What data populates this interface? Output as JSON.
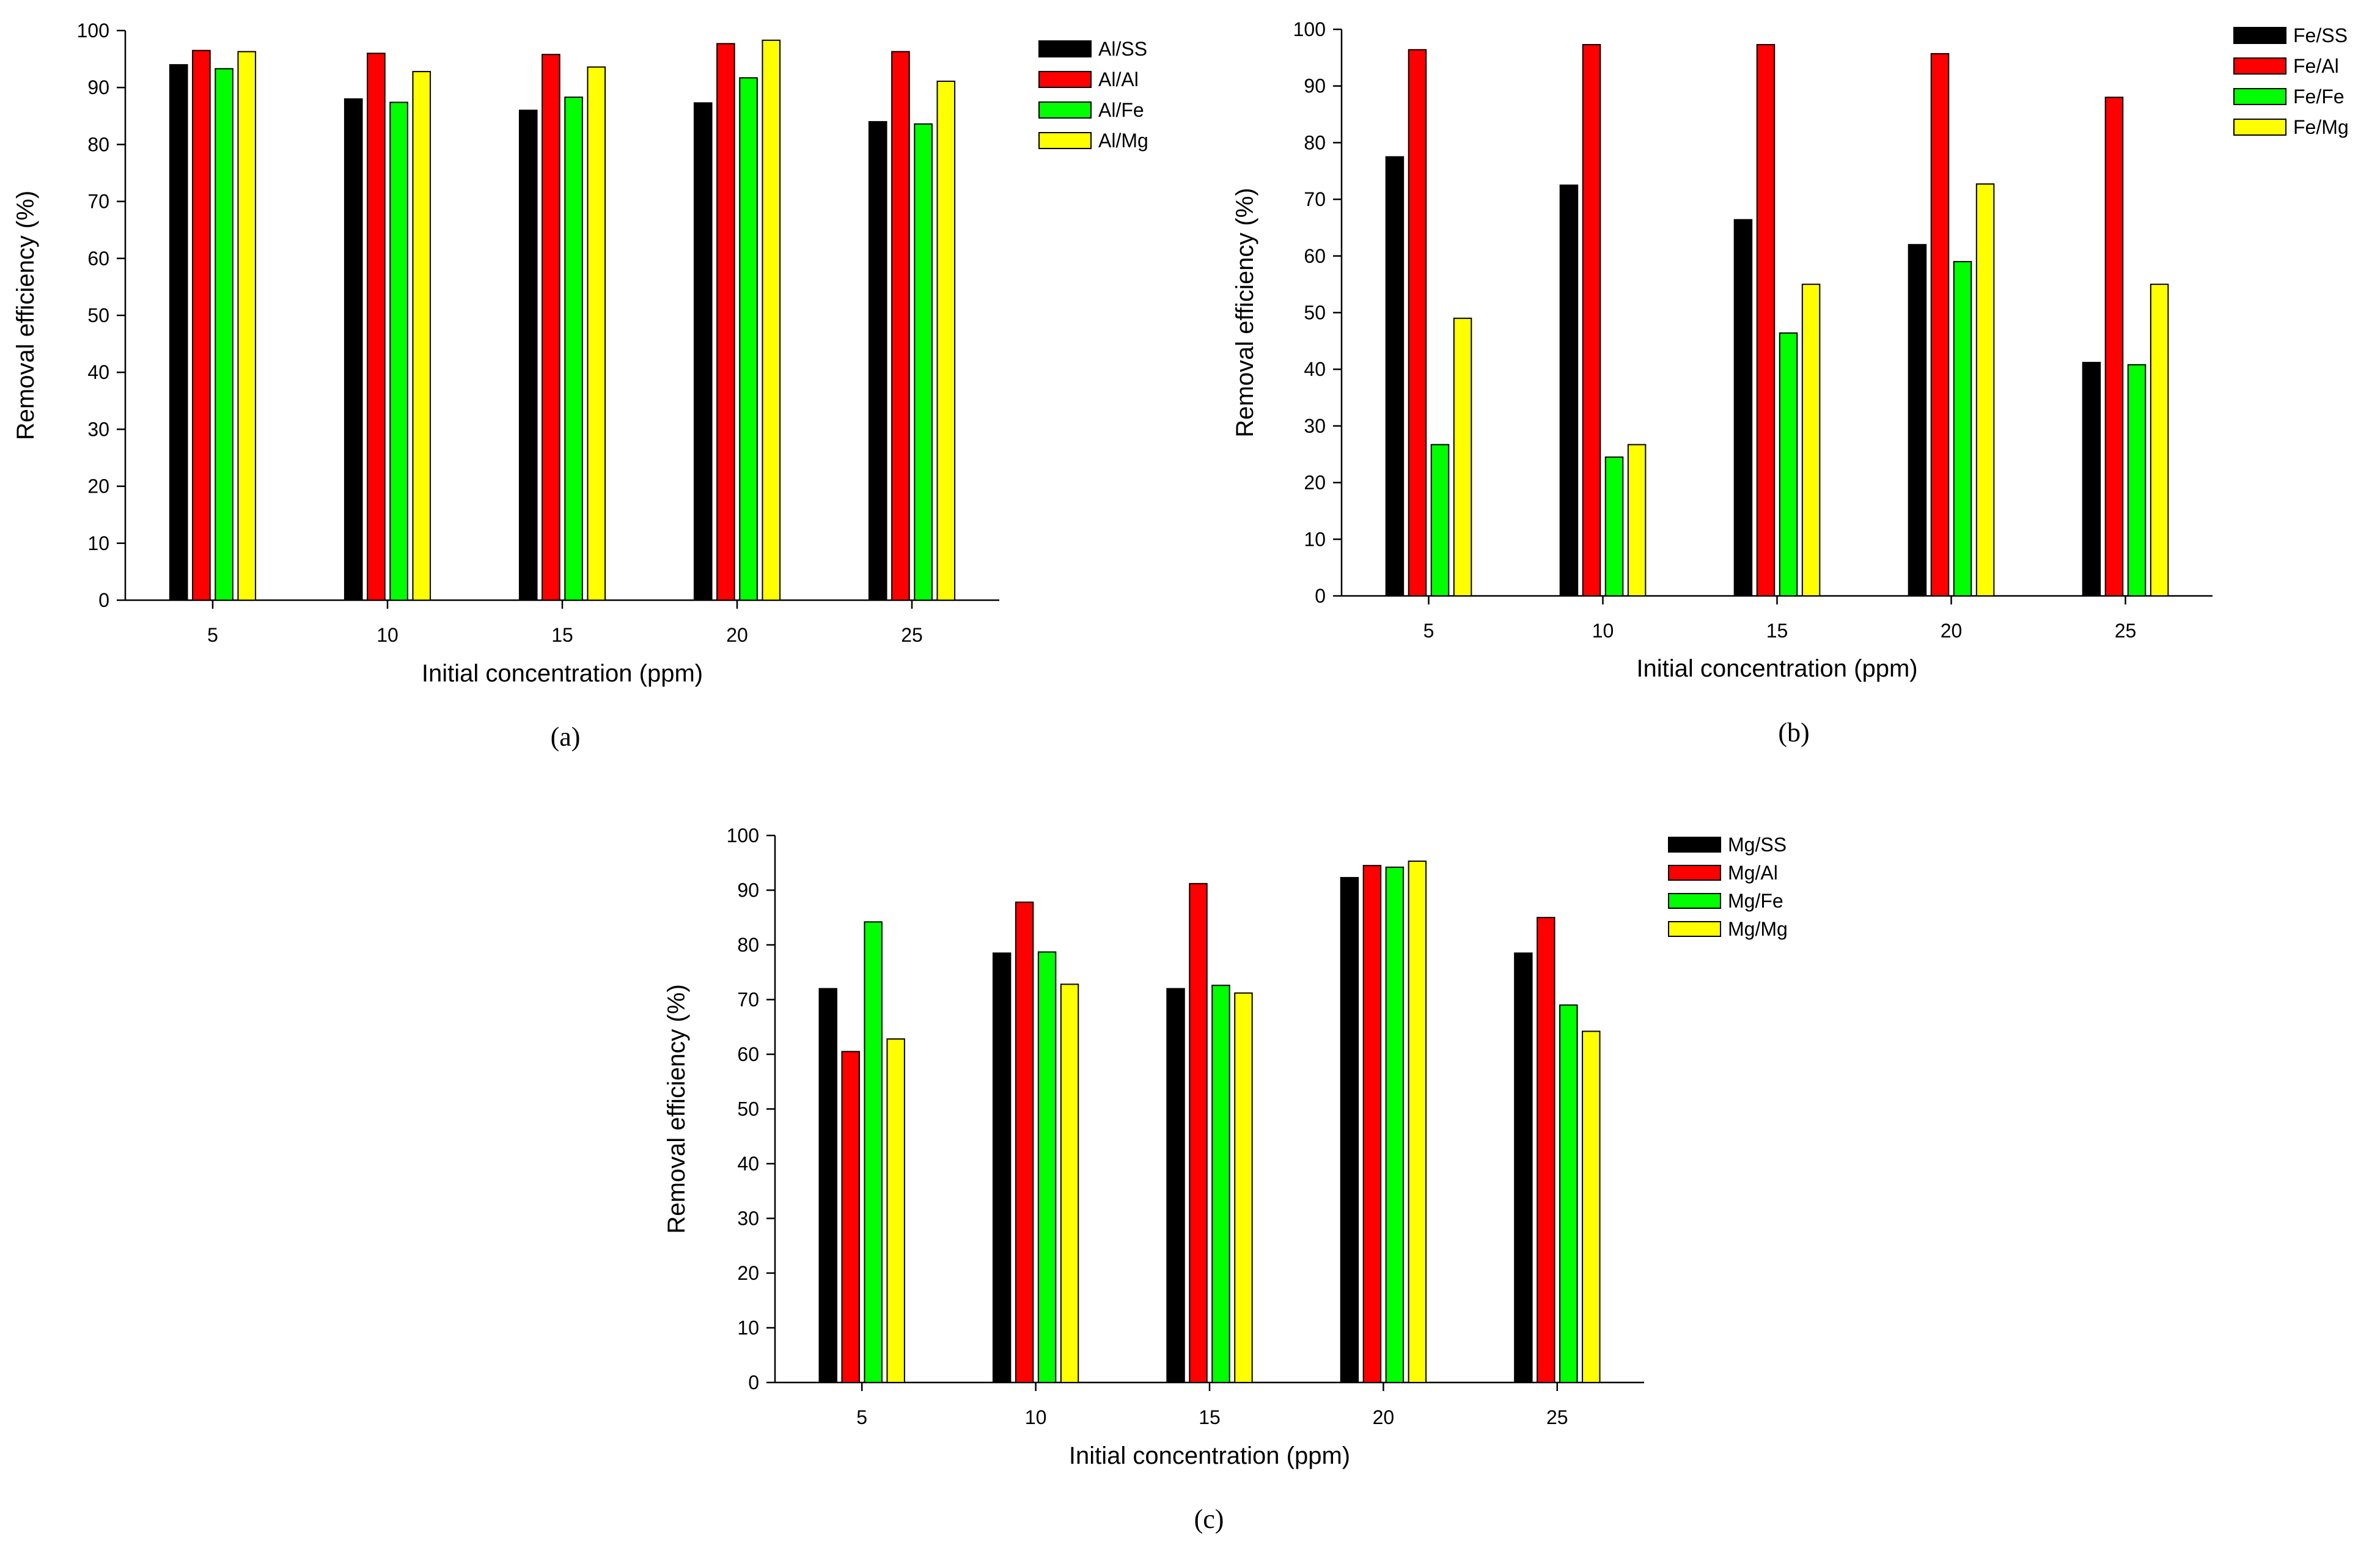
{
  "colors": {
    "series": [
      "#000000",
      "#ff0000",
      "#00ff00",
      "#ffff00"
    ],
    "axis": "#000000"
  },
  "chart_data": [
    {
      "type": "bar",
      "caption": "(a)",
      "xlabel": "Initial concentration (ppm)",
      "ylabel": "Removal efficiency (%)",
      "ylim": [
        0,
        100
      ],
      "yticks": [
        0,
        10,
        20,
        30,
        40,
        50,
        60,
        70,
        80,
        90,
        100
      ],
      "categories": [
        "5",
        "10",
        "15",
        "20",
        "25"
      ],
      "legend_position": "top-right",
      "series": [
        {
          "name": "Al/SS",
          "values": [
            94,
            88,
            86,
            87.3,
            84
          ]
        },
        {
          "name": "Al/Al",
          "values": [
            96.5,
            96,
            95.8,
            97.7,
            96.3
          ]
        },
        {
          "name": "Al/Fe",
          "values": [
            93.3,
            87.4,
            88.3,
            91.7,
            83.6
          ]
        },
        {
          "name": "Al/Mg",
          "values": [
            96.3,
            92.8,
            93.6,
            98.3,
            91.1
          ]
        }
      ]
    },
    {
      "type": "bar",
      "caption": "(b)",
      "xlabel": "Initial concentration (ppm)",
      "ylabel": "Removal efficiency (%)",
      "ylim": [
        0,
        100
      ],
      "yticks": [
        0,
        10,
        20,
        30,
        40,
        50,
        60,
        70,
        80,
        90,
        100
      ],
      "categories": [
        "5",
        "10",
        "15",
        "20",
        "25"
      ],
      "legend_position": "top-right",
      "series": [
        {
          "name": "Fe/SS",
          "values": [
            77.5,
            72.5,
            66.4,
            62,
            41.2
          ]
        },
        {
          "name": "Fe/Al",
          "values": [
            96.4,
            97.3,
            97.3,
            95.7,
            88
          ]
        },
        {
          "name": "Fe/Fe",
          "values": [
            26.7,
            24.5,
            46.4,
            59,
            40.8
          ]
        },
        {
          "name": "Fe/Mg",
          "values": [
            49,
            26.7,
            55,
            72.7,
            55
          ]
        }
      ]
    },
    {
      "type": "bar",
      "caption": "(c)",
      "xlabel": "Initial concentration (ppm)",
      "ylabel": "Removal efficiency (%)",
      "ylim": [
        0,
        100
      ],
      "yticks": [
        0,
        10,
        20,
        30,
        40,
        50,
        60,
        70,
        80,
        90,
        100
      ],
      "categories": [
        "5",
        "10",
        "15",
        "20",
        "25"
      ],
      "legend_position": "top-right",
      "series": [
        {
          "name": "Mg/SS",
          "values": [
            72,
            78.5,
            72,
            92.3,
            78.5
          ]
        },
        {
          "name": "Mg/Al",
          "values": [
            60.5,
            87.8,
            91.2,
            94.5,
            85
          ]
        },
        {
          "name": "Mg/Fe",
          "values": [
            84.2,
            78.7,
            72.6,
            94.2,
            69
          ]
        },
        {
          "name": "Mg/Mg",
          "values": [
            62.8,
            72.8,
            71.2,
            95.3,
            64.2
          ]
        }
      ]
    }
  ]
}
